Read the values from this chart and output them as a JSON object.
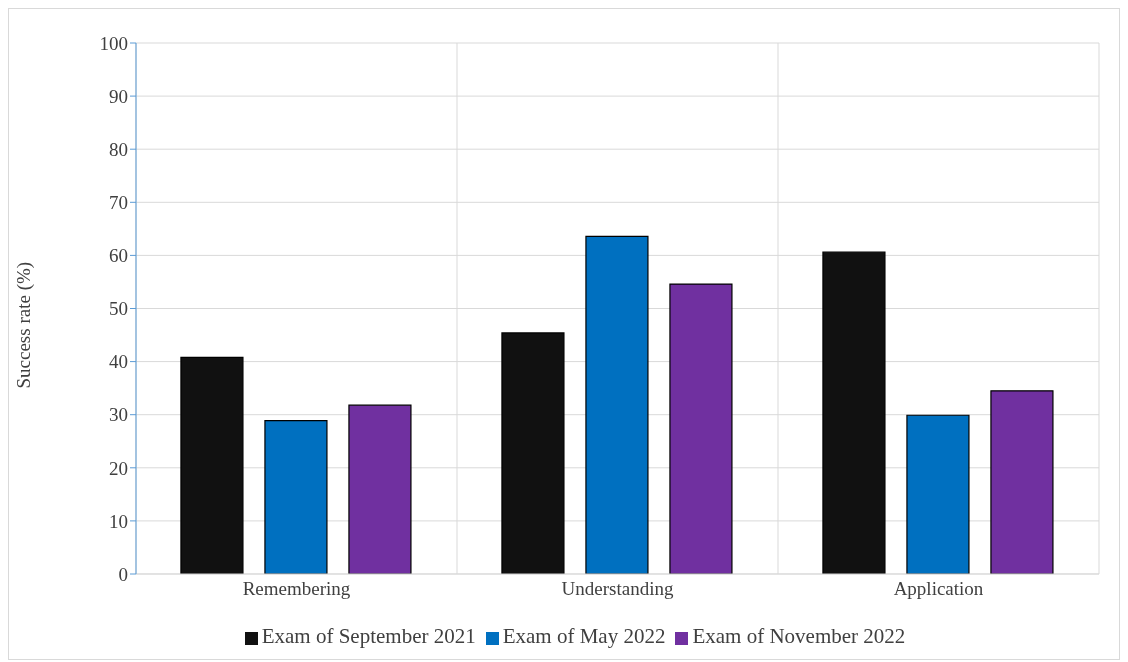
{
  "chart_data": {
    "type": "bar",
    "ylabel": "Success rate (%)",
    "categories": [
      "Remembering",
      "Understanding",
      "Application"
    ],
    "series": [
      {
        "name": "Exam of September 2021",
        "color": "#111111",
        "values": [
          40.8,
          45.4,
          60.6
        ]
      },
      {
        "name": "Exam of May 2022",
        "color": "#0070c0",
        "values": [
          28.9,
          63.6,
          29.9
        ]
      },
      {
        "name": "Exam of November 2022",
        "color": "#7030a0",
        "values": [
          31.8,
          54.6,
          34.5
        ]
      }
    ],
    "ylim": [
      0,
      100
    ],
    "yticks": [
      0,
      10,
      20,
      30,
      40,
      50,
      60,
      70,
      80,
      90,
      100
    ],
    "grid": true,
    "legend": "bottom"
  }
}
